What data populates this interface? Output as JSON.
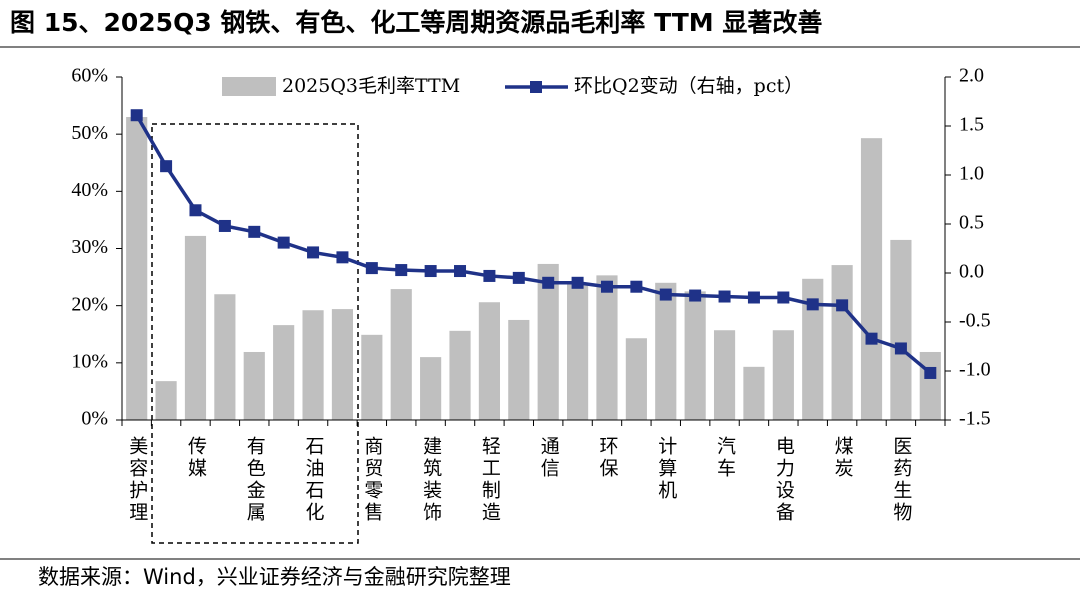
{
  "chart_data": {
    "type": "bar_line",
    "title": "图 15、2025Q3 钢铁、有色、化工等周期资源品毛利率 TTM 显著改善",
    "source": "数据来源：Wind，兴业证券经济与金融研究院整理",
    "categories": [
      "美容护理",
      null,
      "传媒",
      null,
      "有色金属",
      null,
      "石油石化",
      null,
      "商贸零售",
      null,
      "建筑装饰",
      null,
      "轻工制造",
      null,
      "通信",
      null,
      "环保",
      null,
      "计算机",
      null,
      "汽车",
      null,
      "电力设备",
      null,
      "煤炭",
      null,
      "医药生物",
      null
    ],
    "series": [
      {
        "name": "2025Q3毛利率TTM",
        "color": "#bfbfbf",
        "type": "bar",
        "values": [
          53,
          6.8,
          32.2,
          22,
          11.9,
          16.6,
          19.2,
          19.4,
          14.9,
          22.9,
          11,
          15.6,
          20.6,
          17.5,
          27.3,
          24,
          25.3,
          14.3,
          24,
          22.5,
          15.7,
          9.3,
          15.7,
          24.7,
          27.1,
          49.3,
          31.5,
          11.9
        ]
      },
      {
        "name": "环比Q2变动（右轴，pct）",
        "color": "#1f3288",
        "type": "line",
        "axis": "y2",
        "values": [
          1.61,
          1.09,
          0.64,
          0.48,
          0.42,
          0.31,
          0.21,
          0.16,
          0.05,
          0.03,
          0.02,
          0.02,
          -0.03,
          -0.05,
          -0.1,
          -0.1,
          -0.14,
          -0.14,
          -0.22,
          -0.23,
          -0.24,
          -0.25,
          -0.25,
          -0.32,
          -0.33,
          -0.67,
          -0.77,
          -1.02
        ]
      }
    ],
    "ylim": [
      0,
      60
    ],
    "yticks": [
      {
        "value": 0,
        "label": "0%"
      },
      {
        "value": 10,
        "label": "10%"
      },
      {
        "value": 20,
        "label": "20%"
      },
      {
        "value": 30,
        "label": "30%"
      },
      {
        "value": 40,
        "label": "40%"
      },
      {
        "value": 50,
        "label": "50%"
      },
      {
        "value": 60,
        "label": "60%"
      }
    ],
    "y2lim": [
      -1.5,
      2
    ],
    "y2ticks": [
      -1.5,
      {
        "value": -1,
        "label": "-1.0"
      },
      -0.5,
      {
        "value": 0,
        "label": "0.0"
      },
      0.5,
      {
        "value": 1,
        "label": "1.0"
      },
      1.5,
      {
        "value": 2,
        "label": "2.0"
      }
    ],
    "grid": false
  }
}
